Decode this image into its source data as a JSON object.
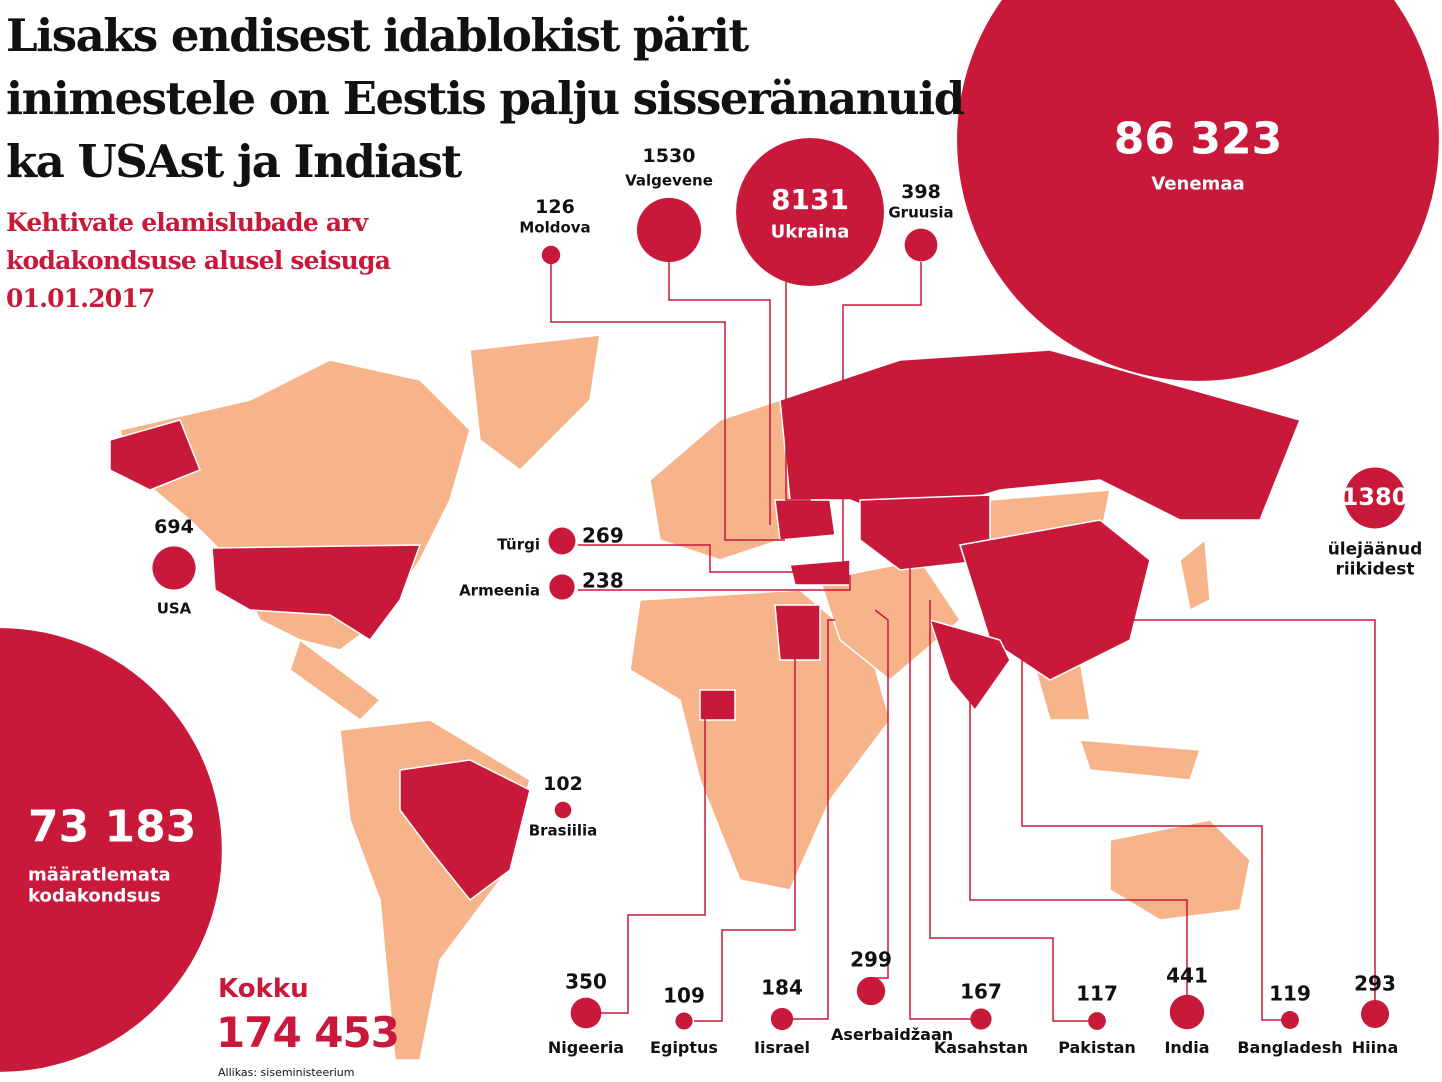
{
  "chart_data": {
    "type": "bubble",
    "title": "Lisaks endisest idablokist pärit inimestele on Eestis palju sisseränanuid ka USAst ja Indiast",
    "subtitle": "Kehtivate elamislubade arv kodakondsuse alusel seisuga 01.01.2017",
    "total_heading": "Kokku",
    "total": {
      "value": 174453,
      "label": "174 453"
    },
    "source": "Allikas: siseministeerium",
    "color": "#c8193a",
    "categories": [
      "Venemaa",
      "Ukraina",
      "Valgevene",
      "Moldova",
      "Gruusia",
      "ülejäänud riikidest",
      "USA",
      "Türgi",
      "Armeenia",
      "Brasiilia",
      "määratlemata kodakondsus",
      "Nigeeria",
      "Egiptus",
      "Iisrael",
      "Aserbaidžaan",
      "Kasahstan",
      "Pakistan",
      "India",
      "Bangladesh",
      "Hiina"
    ],
    "values": [
      86323,
      8131,
      1530,
      126,
      398,
      1380,
      694,
      269,
      238,
      102,
      73183,
      350,
      109,
      184,
      299,
      167,
      117,
      441,
      119,
      293
    ],
    "value_labels": [
      "86 323",
      "8131",
      "1530",
      "126",
      "398",
      "1380",
      "694",
      "269",
      "238",
      "102",
      "73 183",
      "350",
      "109",
      "184",
      "299",
      "167",
      "117",
      "441",
      "119",
      "293"
    ]
  }
}
